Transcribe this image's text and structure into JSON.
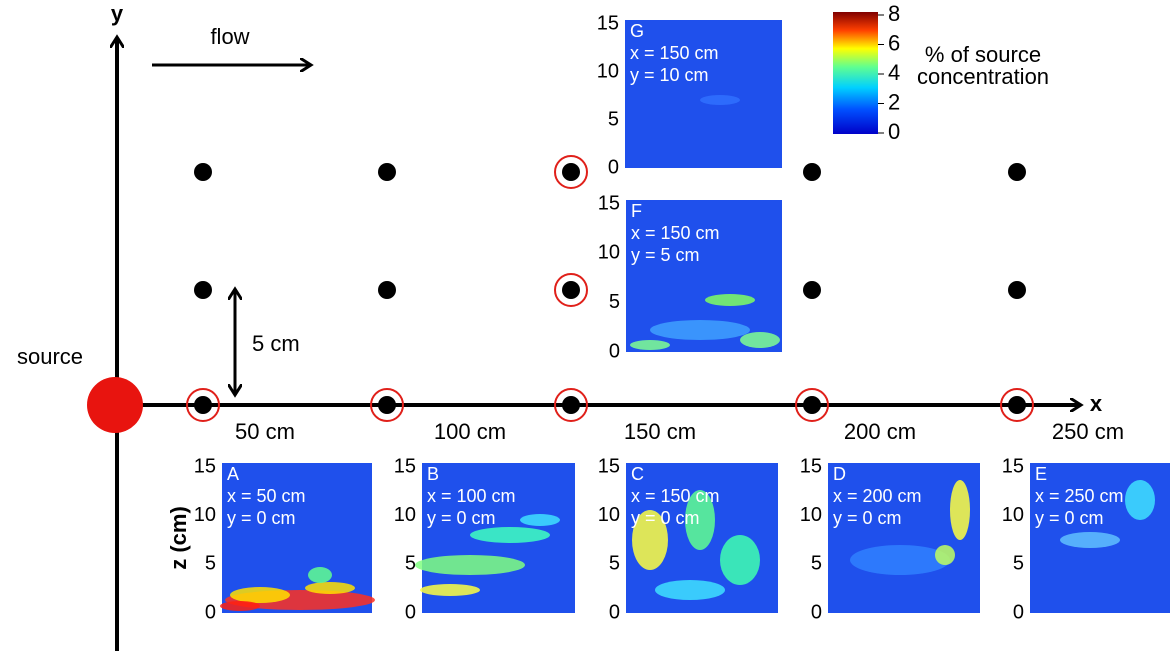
{
  "axes": {
    "y_label": "y",
    "x_label": "x",
    "flow": "flow",
    "source": "source",
    "spacing": "5 cm",
    "z_label": "z (cm)"
  },
  "x_positions": [
    "50 cm",
    "100 cm",
    "150 cm",
    "200 cm",
    "250 cm"
  ],
  "colorbar": {
    "label_lines": [
      "% of source",
      "concentration"
    ],
    "ticks": [
      0,
      2,
      4,
      6,
      8
    ]
  },
  "panel_ticks": [
    0,
    5,
    10,
    15
  ],
  "panels": [
    {
      "letter": "A",
      "x": "x = 50 cm",
      "y": "y = 0 cm"
    },
    {
      "letter": "B",
      "x": "x = 100 cm",
      "y": "y = 0 cm"
    },
    {
      "letter": "C",
      "x": "x = 150 cm",
      "y": "y = 0 cm"
    },
    {
      "letter": "D",
      "x": "x = 200 cm",
      "y": "y = 0 cm"
    },
    {
      "letter": "E",
      "x": "x = 250 cm",
      "y": "y = 0 cm"
    },
    {
      "letter": "F",
      "x": "x = 150 cm",
      "y": "y = 5 cm"
    },
    {
      "letter": "G",
      "x": "x = 150 cm",
      "y": "y = 10 cm"
    }
  ]
}
